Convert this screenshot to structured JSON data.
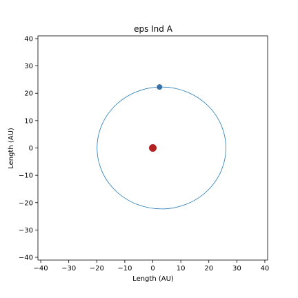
{
  "chart_data": {
    "type": "scatter",
    "title": "eps Ind A",
    "xlabel": "Length (AU)",
    "ylabel": "Length (AU)",
    "xlim": [
      -41,
      41
    ],
    "ylim": [
      -41,
      41
    ],
    "xticks": [
      -40,
      -30,
      -20,
      -10,
      0,
      10,
      20,
      30,
      40
    ],
    "yticks": [
      -40,
      -30,
      -20,
      -10,
      0,
      10,
      20,
      30,
      40
    ],
    "grid": false,
    "orbit": {
      "center": [
        3.1,
        0
      ],
      "semi_axis_x": 23.0,
      "semi_axis_y": 22.3,
      "color": "#1f77b4"
    },
    "points": [
      {
        "role": "star",
        "x": 0,
        "y": 0,
        "color": "#b22222"
      },
      {
        "role": "planet",
        "x": 2.4,
        "y": 22.3,
        "color": "#3a72a8"
      }
    ]
  }
}
